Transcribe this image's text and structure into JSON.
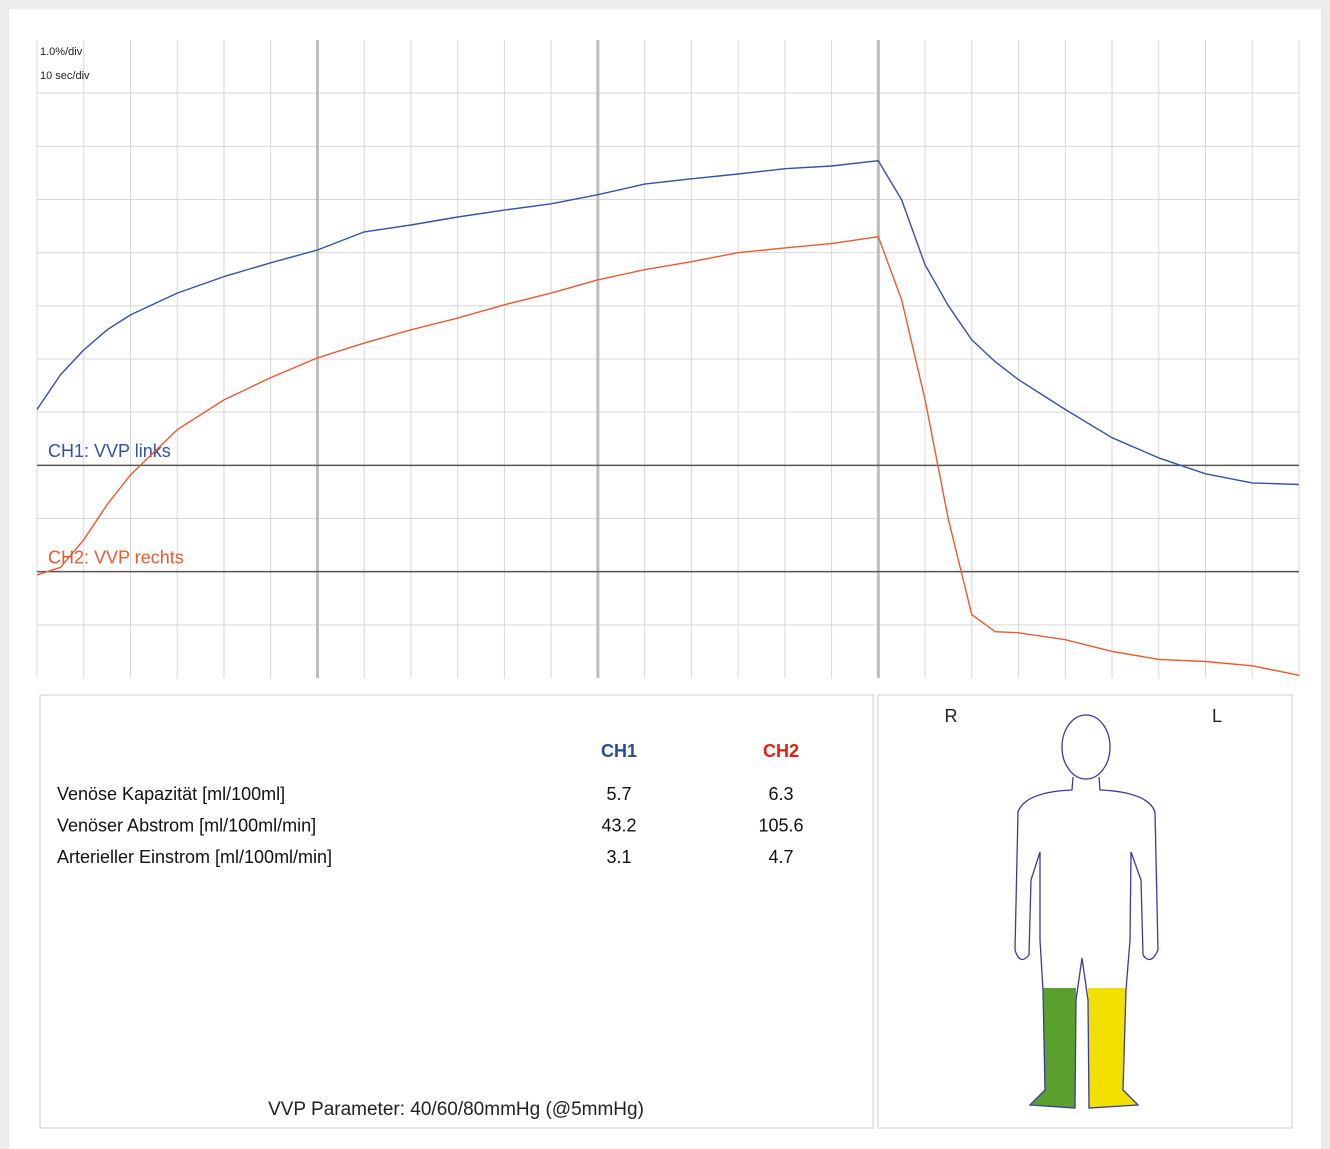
{
  "chart_data": {
    "type": "line",
    "annotations": [
      "1.0%/div",
      "10 sec/div"
    ],
    "x": [
      0,
      5,
      10,
      15,
      20,
      30,
      40,
      50,
      60,
      70,
      80,
      90,
      100,
      110,
      120,
      130,
      140,
      150,
      160,
      170,
      180,
      185,
      190,
      195,
      200,
      205,
      210,
      220,
      230,
      240,
      250,
      260,
      270
    ],
    "xlim": [
      0,
      270
    ],
    "xticks": [
      0,
      10,
      20,
      30,
      40,
      50,
      60,
      70,
      80,
      90,
      100,
      110,
      120,
      130,
      140,
      150,
      160,
      170,
      180,
      190,
      200,
      210,
      220,
      230,
      240,
      250,
      260,
      270
    ],
    "major_xticks": [
      60,
      120,
      180
    ],
    "ylim": [
      -2,
      10
    ],
    "yticks": [
      -1,
      0,
      1,
      2,
      3,
      4,
      5,
      6,
      7,
      8,
      9
    ],
    "grid": true,
    "series": [
      {
        "name": "CH1: VVP links",
        "color": "#3352a8",
        "baseline": 2,
        "values": [
          3.05,
          3.7,
          4.17,
          4.55,
          4.83,
          5.24,
          5.55,
          5.81,
          6.05,
          6.39,
          6.52,
          6.67,
          6.8,
          6.92,
          7.09,
          7.29,
          7.39,
          7.48,
          7.58,
          7.63,
          7.73,
          6.99,
          5.77,
          5.0,
          4.36,
          3.95,
          3.61,
          3.05,
          2.52,
          2.14,
          1.84,
          1.67,
          1.64
        ]
      },
      {
        "name": "CH2: VVP rechts",
        "color": "#ea5a30",
        "baseline": 0,
        "values": [
          -0.06,
          0.08,
          0.6,
          1.26,
          1.82,
          2.67,
          3.23,
          3.65,
          4.02,
          4.3,
          4.55,
          4.77,
          5.02,
          5.24,
          5.49,
          5.68,
          5.83,
          6.0,
          6.09,
          6.17,
          6.3,
          5.11,
          3.23,
          0.98,
          -0.81,
          -1.13,
          -1.15,
          -1.28,
          -1.5,
          -1.65,
          -1.69,
          -1.77,
          -1.95
        ]
      }
    ]
  },
  "table": {
    "columns": [
      "CH1",
      "CH2"
    ],
    "column_colors": [
      "#2a4a9a",
      "#e02010"
    ],
    "rows": [
      {
        "label": "Venöse Kapazität [ml/100ml]",
        "values": [
          5.7,
          6.3
        ]
      },
      {
        "label": "Venöser Abstrom [ml/100ml/min]",
        "values": [
          43.2,
          105.6
        ]
      },
      {
        "label": "Arterieller Einstrom [ml/100ml/min]",
        "values": [
          3.1,
          4.7
        ]
      }
    ]
  },
  "figure": {
    "labels": [
      "R",
      "L"
    ]
  },
  "footer": "VVP Parameter: 40/60/80mmHg (@5mmHg)"
}
